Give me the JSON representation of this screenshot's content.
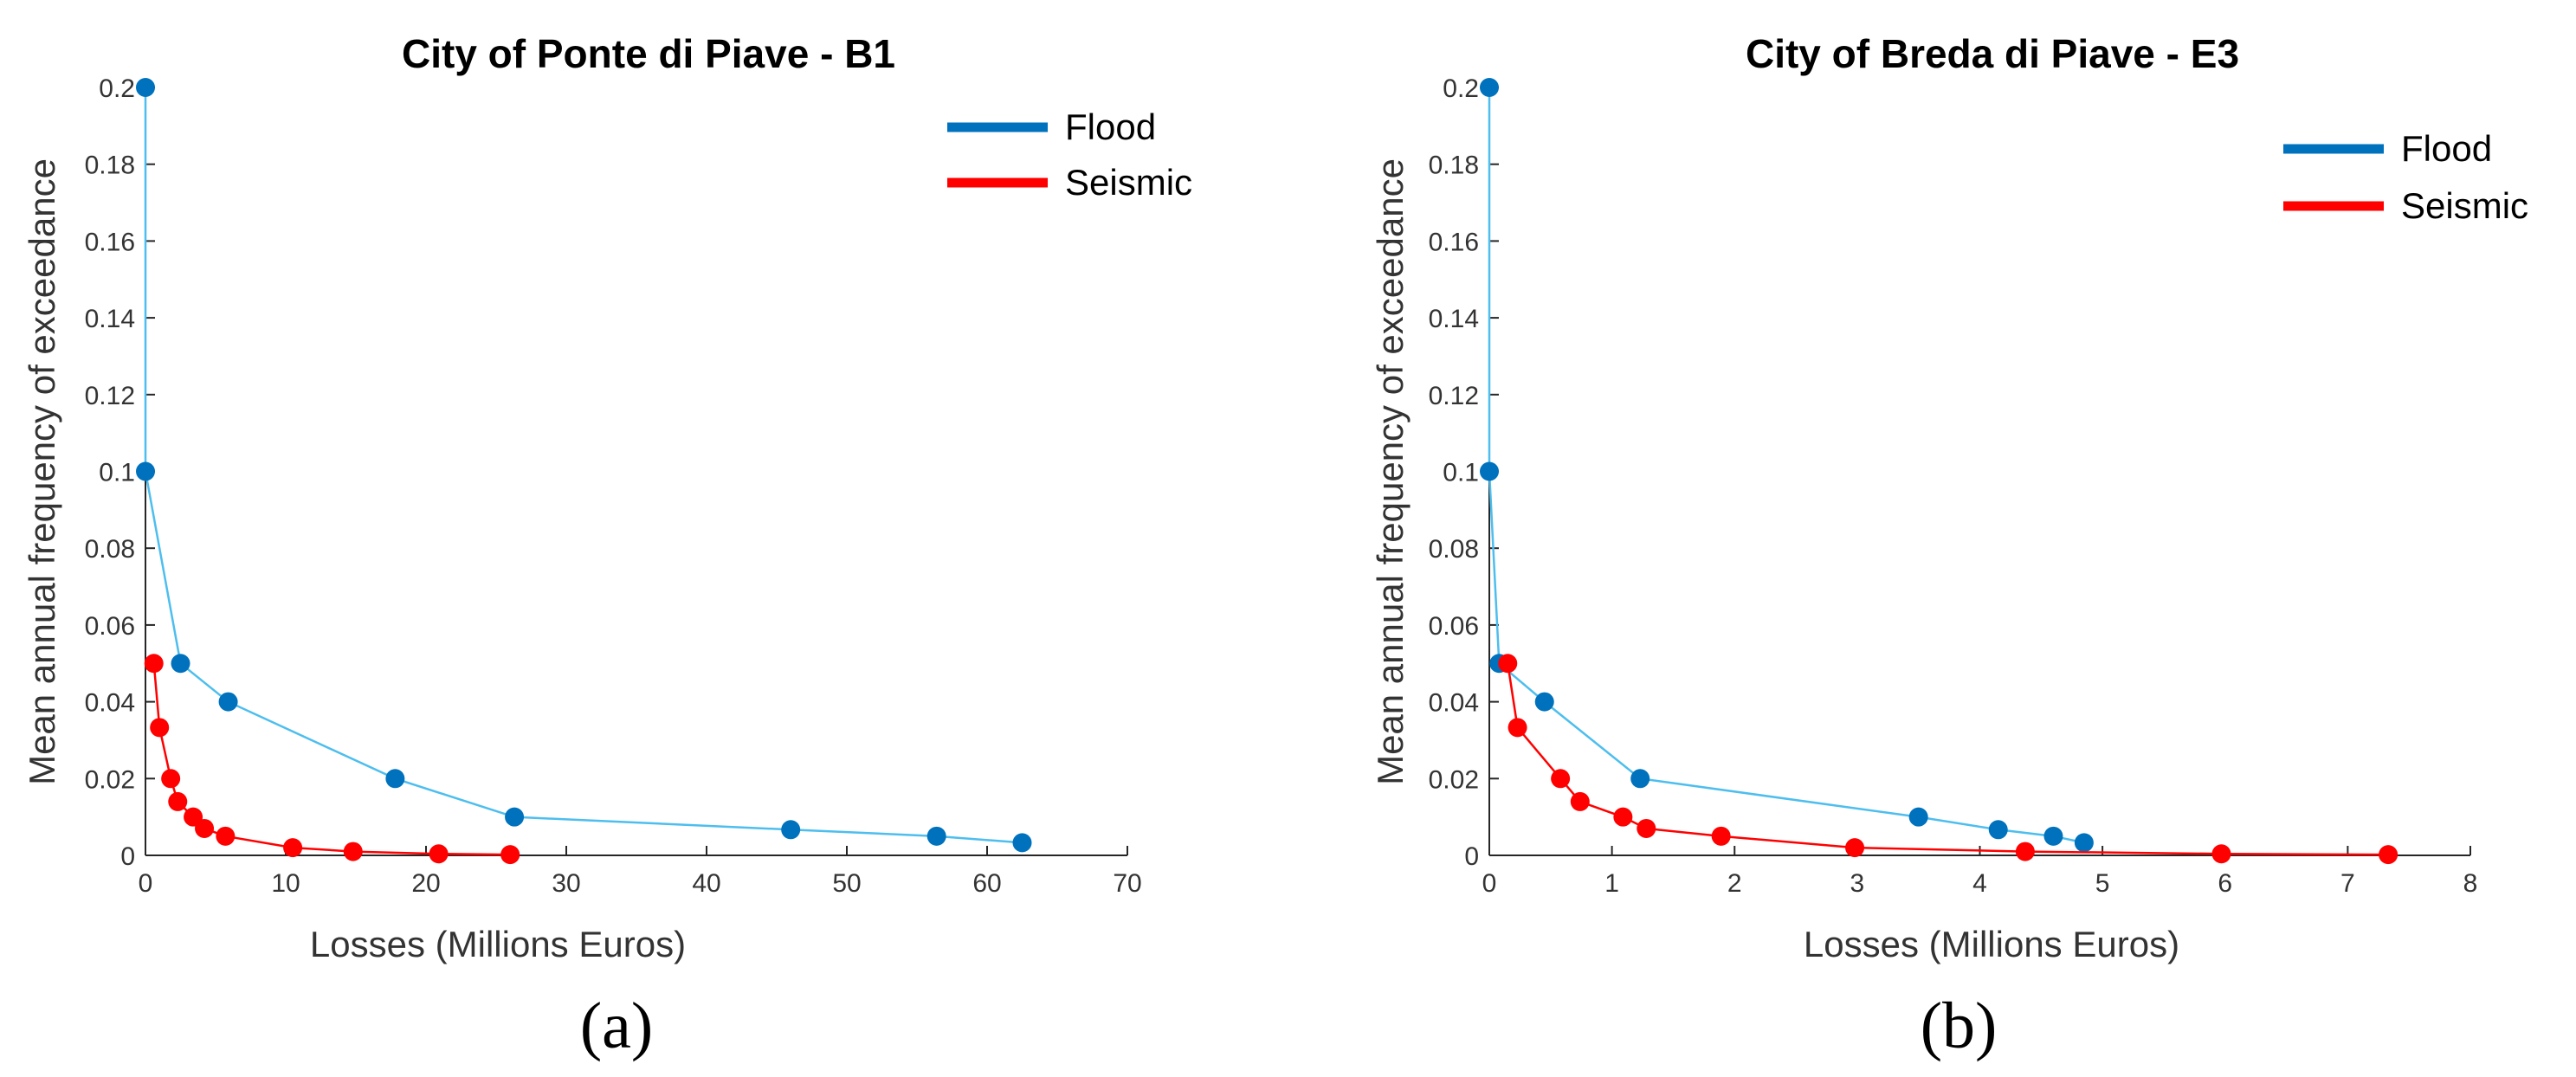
{
  "colors": {
    "flood": "#0072BD",
    "flood_line": "#4DBEEE",
    "seismic": "#FF0000",
    "axis": "#262626"
  },
  "chart_data": [
    {
      "type": "line",
      "panel": "(a)",
      "title": "City of Ponte di Piave - B1",
      "xlabel": "Losses (Millions Euros)",
      "ylabel": "Mean annual frequency of exceedance",
      "xlim": [
        0,
        70
      ],
      "ylim": [
        0,
        0.2
      ],
      "xticks": [
        0,
        10,
        20,
        30,
        40,
        50,
        60,
        70
      ],
      "xtick_labels": [
        "0",
        "10",
        "20",
        "30",
        "40",
        "50",
        "60",
        "70"
      ],
      "yticks": [
        0,
        0.02,
        0.04,
        0.06,
        0.08,
        0.1,
        0.12,
        0.14,
        0.16,
        0.18,
        0.2
      ],
      "ytick_labels": [
        "0",
        "0.02",
        "0.04",
        "0.06",
        "0.08",
        "0.1",
        "0.12",
        "0.14",
        "0.16",
        "0.18",
        "0.2"
      ],
      "legend_position": "top-right",
      "series": [
        {
          "name": "Flood",
          "color_key": "flood",
          "x": [
            0.0,
            0.0,
            2.5,
            5.9,
            17.8,
            26.3,
            46.0,
            56.4,
            62.5
          ],
          "y": [
            0.2,
            0.1,
            0.05,
            0.04,
            0.02,
            0.01,
            0.0067,
            0.005,
            0.0033
          ]
        },
        {
          "name": "Seismic",
          "color_key": "seismic",
          "x": [
            0.6,
            1.0,
            1.8,
            2.3,
            3.4,
            4.2,
            5.7,
            10.5,
            14.8,
            20.9,
            26.0
          ],
          "y": [
            0.05,
            0.0333,
            0.02,
            0.014,
            0.01,
            0.007,
            0.005,
            0.002,
            0.001,
            0.0004,
            0.0002
          ]
        }
      ]
    },
    {
      "type": "line",
      "panel": "(b)",
      "title": "City of Breda di Piave - E3",
      "xlabel": "Losses (Millions Euros)",
      "ylabel": "Mean annual frequency of exceedance",
      "xlim": [
        0,
        8
      ],
      "ylim": [
        0,
        0.2
      ],
      "xticks": [
        0,
        1,
        2,
        3,
        4,
        5,
        6,
        7,
        8
      ],
      "xtick_labels": [
        "0",
        "1",
        "2",
        "3",
        "4",
        "5",
        "6",
        "7",
        "8"
      ],
      "yticks": [
        0,
        0.02,
        0.04,
        0.06,
        0.08,
        0.1,
        0.12,
        0.14,
        0.16,
        0.18,
        0.2
      ],
      "ytick_labels": [
        "0",
        "0.02",
        "0.04",
        "0.06",
        "0.08",
        "0.1",
        "0.12",
        "0.14",
        "0.16",
        "0.18",
        "0.2"
      ],
      "legend_position": "top-right",
      "series": [
        {
          "name": "Flood",
          "color_key": "flood",
          "x": [
            0.0,
            0.0,
            0.08,
            0.45,
            1.23,
            3.5,
            4.15,
            4.6,
            4.85
          ],
          "y": [
            0.2,
            0.1,
            0.05,
            0.04,
            0.02,
            0.01,
            0.0067,
            0.005,
            0.0033
          ]
        },
        {
          "name": "Seismic",
          "color_key": "seismic",
          "x": [
            0.15,
            0.23,
            0.58,
            0.74,
            1.09,
            1.28,
            1.89,
            2.98,
            4.37,
            5.97,
            7.33
          ],
          "y": [
            0.05,
            0.0333,
            0.02,
            0.014,
            0.01,
            0.007,
            0.005,
            0.002,
            0.001,
            0.0004,
            0.0002
          ]
        }
      ]
    }
  ]
}
